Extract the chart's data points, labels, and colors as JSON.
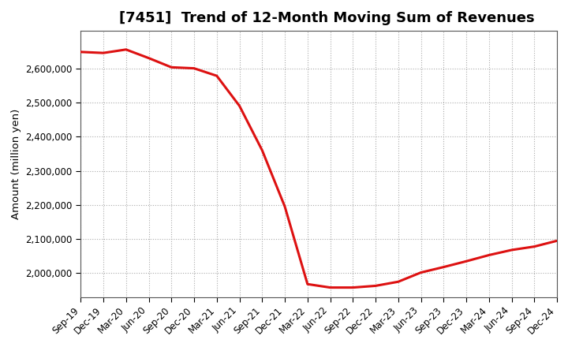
{
  "title": "[7451]  Trend of 12-Month Moving Sum of Revenues",
  "ylabel": "Amount (million yen)",
  "line_color": "#dd1111",
  "background_color": "#ffffff",
  "plot_bg_color": "#ffffff",
  "grid_color": "#aaaaaa",
  "x_labels": [
    "Sep-19",
    "Dec-19",
    "Mar-20",
    "Jun-20",
    "Sep-20",
    "Dec-20",
    "Mar-21",
    "Jun-21",
    "Sep-21",
    "Dec-21",
    "Mar-22",
    "Jun-22",
    "Sep-22",
    "Dec-22",
    "Mar-23",
    "Jun-23",
    "Sep-23",
    "Dec-23",
    "Mar-24",
    "Jun-24",
    "Sep-24",
    "Dec-24"
  ],
  "y_values": [
    2648000,
    2645000,
    2655000,
    2630000,
    2603000,
    2600000,
    2578000,
    2490000,
    2360000,
    2195000,
    1968000,
    1958000,
    1958000,
    1963000,
    1975000,
    2002000,
    2018000,
    2035000,
    2053000,
    2068000,
    2078000,
    2095000
  ],
  "ylim_min": 1930000,
  "ylim_max": 2710000,
  "yticks": [
    2000000,
    2100000,
    2200000,
    2300000,
    2400000,
    2500000,
    2600000
  ],
  "title_fontsize": 13,
  "axis_fontsize": 8.5,
  "ylabel_fontsize": 9.5,
  "linewidth": 2.2
}
